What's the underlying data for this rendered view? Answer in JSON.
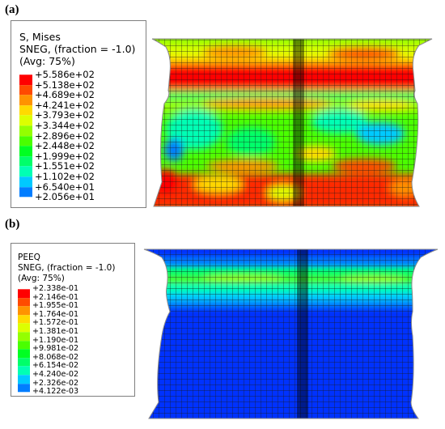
{
  "panels": [
    {
      "tag": "(a)",
      "legend_lines": [
        "S, Mises",
        "SNEG, (fraction = -1.0)",
        "(Avg: 75%)"
      ],
      "legend_values": [
        "+5.586e+02",
        "+5.138e+02",
        "+4.689e+02",
        "+4.241e+02",
        "+3.793e+02",
        "+3.344e+02",
        "+2.896e+02",
        "+2.448e+02",
        "+1.999e+02",
        "+1.551e+02",
        "+1.102e+02",
        "+6.540e+01",
        "+2.056e+01"
      ]
    },
    {
      "tag": "(b)",
      "legend_lines": [
        "PEEQ",
        "SNEG, (fraction = -1.0)",
        "(Avg: 75%)"
      ],
      "legend_values": [
        "+2.338e-01",
        "+2.146e-01",
        "+1.955e-01",
        "+1.764e-01",
        "+1.572e-01",
        "+1.381e-01",
        "+1.190e-01",
        "+9.981e-02",
        "+8.068e-02",
        "+6.154e-02",
        "+4.240e-02",
        "+2.326e-02",
        "+4.122e-03"
      ]
    }
  ],
  "colormap": [
    "#ff0000",
    "#ff4a00",
    "#ff9300",
    "#ffda00",
    "#dcff00",
    "#94ff00",
    "#4aff00",
    "#00ff22",
    "#00ff6a",
    "#00ffb4",
    "#00c9ff",
    "#007dff",
    "#0033ff"
  ]
}
